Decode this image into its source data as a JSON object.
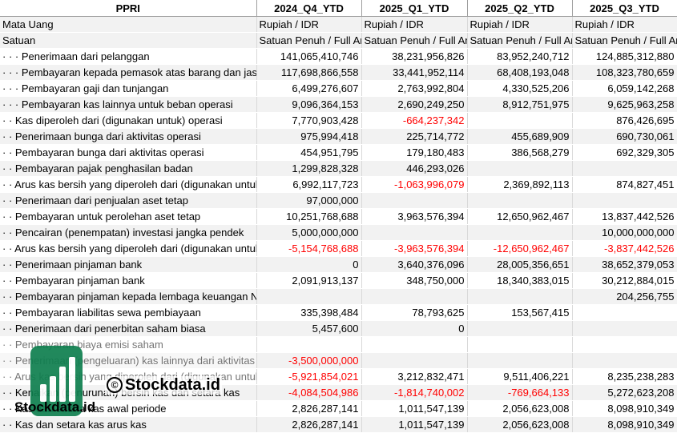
{
  "header": {
    "corner": "PPRI",
    "periods": [
      "2024_Q4_YTD",
      "2025_Q1_YTD",
      "2025_Q2_YTD",
      "2025_Q3_YTD"
    ]
  },
  "meta_rows": [
    {
      "label": "Mata Uang",
      "values": [
        "Rupiah / IDR",
        "Rupiah / IDR",
        "Rupiah / IDR",
        "Rupiah / IDR"
      ]
    },
    {
      "label": "Satuan",
      "values": [
        "Satuan Penuh / Full Amount",
        "Satuan Penuh / Full Amount",
        "Satuan Penuh / Full Amount",
        "Satuan Penuh / Full Amount"
      ]
    }
  ],
  "rows": [
    {
      "label": "· · · Penerimaan dari pelanggan",
      "values": [
        "141,065,410,746",
        "38,231,956,826",
        "83,952,240,712",
        "124,885,312,880"
      ]
    },
    {
      "label": "· · · Pembayaran kepada pemasok atas barang dan jasa",
      "values": [
        "117,698,866,558",
        "33,441,952,114",
        "68,408,193,048",
        "108,323,780,659"
      ]
    },
    {
      "label": "· · · Pembayaran gaji dan tunjangan",
      "values": [
        "6,499,276,607",
        "2,763,992,804",
        "4,330,525,206",
        "6,059,142,268"
      ]
    },
    {
      "label": "· · · Pembayaran kas lainnya untuk beban operasi",
      "values": [
        "9,096,364,153",
        "2,690,249,250",
        "8,912,751,975",
        "9,625,963,258"
      ]
    },
    {
      "label": "· · Kas diperoleh dari (digunakan untuk) operasi",
      "values": [
        "7,770,903,428",
        "-664,237,342",
        "",
        "876,426,695"
      ]
    },
    {
      "label": "· · Penerimaan bunga dari aktivitas operasi",
      "values": [
        "975,994,418",
        "225,714,772",
        "455,689,909",
        "690,730,061"
      ]
    },
    {
      "label": "· · Pembayaran bunga dari aktivitas operasi",
      "values": [
        "454,951,795",
        "179,180,483",
        "386,568,279",
        "692,329,305"
      ]
    },
    {
      "label": "· · Pembayaran pajak penghasilan badan",
      "values": [
        "1,299,828,328",
        "446,293,026",
        "",
        ""
      ]
    },
    {
      "label": "· · Arus kas bersih yang diperoleh dari (digunakan untuk) aktivitas operasi",
      "values": [
        "6,992,117,723",
        "-1,063,996,079",
        "2,369,892,113",
        "874,827,451"
      ]
    },
    {
      "label": "· · Penerimaan dari penjualan aset tetap",
      "values": [
        "97,000,000",
        "",
        "",
        ""
      ]
    },
    {
      "label": "· · Pembayaran untuk perolehan aset tetap",
      "values": [
        "10,251,768,688",
        "3,963,576,394",
        "12,650,962,467",
        "13,837,442,526"
      ]
    },
    {
      "label": "· · Pencairan (penempatan) investasi jangka pendek",
      "values": [
        "5,000,000,000",
        "",
        "",
        "10,000,000,000"
      ]
    },
    {
      "label": "· · Arus kas bersih yang diperoleh dari (digunakan untuk) aktivitas investasi",
      "values": [
        "-5,154,768,688",
        "-3,963,576,394",
        "-12,650,962,467",
        "-3,837,442,526"
      ]
    },
    {
      "label": "· · Penerimaan pinjaman bank",
      "values": [
        "0",
        "3,640,376,096",
        "28,005,356,651",
        "38,652,379,053"
      ]
    },
    {
      "label": "· · Pembayaran pinjaman bank",
      "values": [
        "2,091,913,137",
        "348,750,000",
        "18,340,383,015",
        "30,212,884,015"
      ]
    },
    {
      "label": "· · Pembayaran pinjaman kepada lembaga keuangan Non-bank",
      "values": [
        "",
        "",
        "",
        "204,256,755"
      ]
    },
    {
      "label": "· · Pembayaran liabilitas sewa pembiayaan",
      "values": [
        "335,398,484",
        "78,793,625",
        "153,567,415",
        ""
      ]
    },
    {
      "label": "· · Penerimaan dari penerbitan saham biasa",
      "values": [
        "5,457,600",
        "0",
        "",
        ""
      ]
    },
    {
      "label": "· · Pembayaran biaya emisi saham",
      "values": [
        "",
        "",
        "",
        ""
      ]
    },
    {
      "label": "· · Penerimaan (pengeluaran) kas lainnya dari aktivitas pendanaan",
      "values": [
        "-3,500,000,000",
        "",
        "",
        ""
      ]
    },
    {
      "label": "· · Arus kas bersih yang diperoleh dari (digunakan untuk) aktivitas pendanaan",
      "values": [
        "-5,921,854,021",
        "3,212,832,471",
        "9,511,406,221",
        "8,235,238,283"
      ]
    },
    {
      "label": "· · Kenaikan (penurunan) bersih kas dan setara kas",
      "values": [
        "-4,084,504,986",
        "-1,814,740,002",
        "-769,664,133",
        "5,272,623,208"
      ]
    },
    {
      "label": "· · Kas dan setara kas awal periode",
      "values": [
        "2,826,287,141",
        "1,011,547,139",
        "2,056,623,008",
        "8,098,910,349"
      ]
    },
    {
      "label": "· · Kas dan setara kas arus kas",
      "values": [
        "2,826,287,141",
        "1,011,547,139",
        "2,056,623,008",
        "8,098,910,349"
      ]
    }
  ],
  "watermark": {
    "brand_text": "Stockdata.id",
    "center_text": "Stockdata.id",
    "copyright": "©",
    "brand_color": "#0f7f4f"
  }
}
